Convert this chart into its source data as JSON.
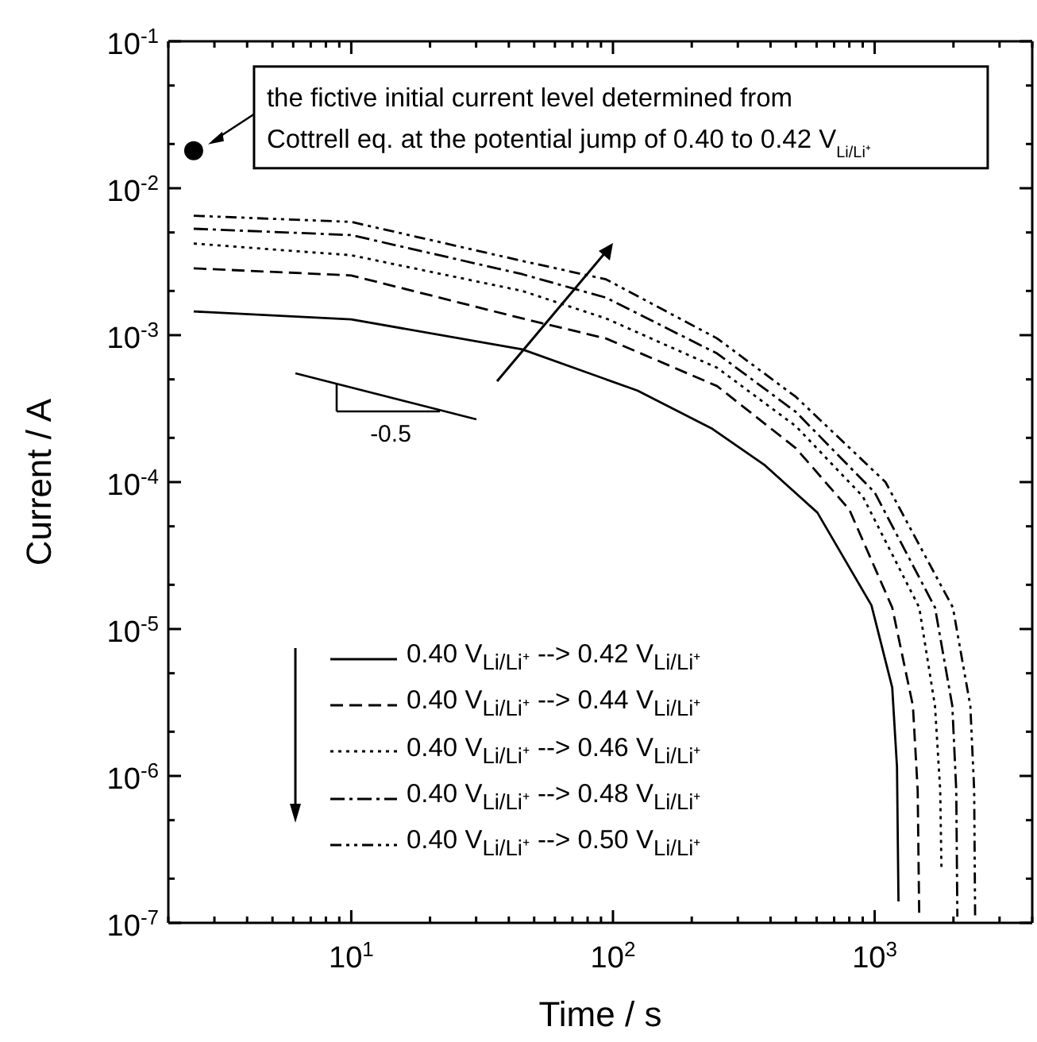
{
  "chart_data": {
    "type": "line",
    "xlabel": "Time / s",
    "ylabel": "Current / A",
    "log": "xy",
    "grid": false,
    "legend": "bottom left",
    "marker": "none",
    "xlim": [
      2,
      4000
    ],
    "xticks": [
      {
        "value": 2,
        "label": null
      },
      {
        "value": 3,
        "label": null
      },
      {
        "value": 4,
        "label": null
      },
      {
        "value": 5,
        "label": null
      },
      {
        "value": 6,
        "label": null
      },
      {
        "value": 7,
        "label": null
      },
      {
        "value": 8,
        "label": null
      },
      {
        "value": 9,
        "label": null
      },
      {
        "value": 10,
        "label": "10$^{1}$"
      },
      {
        "value": 20,
        "label": null
      },
      {
        "value": 30,
        "label": null
      },
      {
        "value": 40,
        "label": null
      },
      {
        "value": 50,
        "label": null
      },
      {
        "value": 60,
        "label": null
      },
      {
        "value": 70,
        "label": null
      },
      {
        "value": 80,
        "label": null
      },
      {
        "value": 90,
        "label": null
      },
      {
        "value": 100,
        "label": "10$^{2}$"
      },
      {
        "value": 200,
        "label": null
      },
      {
        "value": 300,
        "label": null
      },
      {
        "value": 400,
        "label": null
      },
      {
        "value": 500,
        "label": null
      },
      {
        "value": 600,
        "label": null
      },
      {
        "value": 700,
        "label": null
      },
      {
        "value": 800,
        "label": null
      },
      {
        "value": 900,
        "label": null
      },
      {
        "value": 1000,
        "label": "10$^{3}$"
      },
      {
        "value": 2000,
        "label": null
      },
      {
        "value": 3000,
        "label": null
      },
      {
        "value": 4000,
        "label": null
      }
    ],
    "ylim": [
      1e-07,
      0.1
    ],
    "yticks": [
      {
        "value": 1e-07,
        "label": "10$^{-7}$"
      },
      {
        "value": 2e-07,
        "label": null
      },
      {
        "value": 5e-07,
        "label": null
      },
      {
        "value": 1e-06,
        "label": "10$^{-6}$"
      },
      {
        "value": 2e-06,
        "label": null
      },
      {
        "value": 5e-06,
        "label": null
      },
      {
        "value": 1e-05,
        "label": "10$^{-5}$"
      },
      {
        "value": 2e-05,
        "label": null
      },
      {
        "value": 5e-05,
        "label": null
      },
      {
        "value": 0.0001,
        "label": "10$^{-4}$"
      },
      {
        "value": 0.0002,
        "label": null
      },
      {
        "value": 0.0005,
        "label": null
      },
      {
        "value": 0.001,
        "label": "10$^{-3}$"
      },
      {
        "value": 0.002,
        "label": null
      },
      {
        "value": 0.005,
        "label": null
      },
      {
        "value": 0.01,
        "label": "10$^{-2}$"
      },
      {
        "value": 0.02,
        "label": null
      },
      {
        "value": 0.05,
        "label": null
      },
      {
        "value": 0.1,
        "label": "10$^{-1}$"
      }
    ],
    "series": [
      {
        "name": "0.40 V$_{Li/Li⁺}$ --> 0.42 V$_{Li/Li⁺}$",
        "color": "#000000",
        "line_style": "solid",
        "x": [
          2.5,
          10,
          45,
          124,
          240,
          381,
          604,
          972,
          1167,
          1217,
          1233
        ],
        "values": [
          0.00145,
          0.00128,
          0.0008,
          0.00042,
          0.00023,
          0.00013,
          6.2e-05,
          1.45e-05,
          4e-06,
          1.15e-06,
          1.4e-07
        ]
      },
      {
        "name": "0.40 V$_{Li/Li⁺}$ --> 0.44 V$_{Li/Li⁺}$",
        "color": "#000000",
        "line_style": "dashed",
        "x": [
          2.5,
          10,
          45,
          94,
          250,
          500,
          800,
          1167,
          1400,
          1460,
          1480
        ],
        "values": [
          0.00285,
          0.00255,
          0.0013,
          0.00095,
          0.00045,
          0.00017,
          6.5e-05,
          1.4e-05,
          3e-06,
          8e-07,
          1.1e-07
        ]
      },
      {
        "name": "0.40 V$_{Li/Li⁺}$ --> 0.46 V$_{Li/Li⁺}$",
        "color": "#000000",
        "line_style": "dotted",
        "x": [
          2.5,
          10,
          45,
          94,
          250,
          500,
          900,
          1480,
          1700,
          1780,
          1800
        ],
        "values": [
          0.0042,
          0.0035,
          0.002,
          0.0013,
          0.0006,
          0.00024,
          8e-05,
          1.4e-05,
          3e-06,
          8e-07,
          2.3e-07
        ]
      },
      {
        "name": "0.40 V$_{Li/Li⁺}$ --> 0.48 V$_{Li/Li⁺}$",
        "color": "#000000",
        "line_style": "dashdot",
        "x": [
          2.5,
          10,
          45,
          94,
          250,
          500,
          1000,
          1700,
          1980,
          2050,
          2070
        ],
        "values": [
          0.0053,
          0.0048,
          0.0026,
          0.0018,
          0.00075,
          0.0003,
          8.5e-05,
          1.4e-05,
          3e-06,
          8e-07,
          1.1e-07
        ]
      },
      {
        "name": "0.40 V$_{Li/Li⁺}$ --> 0.50 V$_{Li/Li⁺}$",
        "color": "#000000",
        "line_style": "dashdotdot",
        "x": [
          2.5,
          10,
          45,
          94,
          250,
          500,
          1100,
          1990,
          2320,
          2400,
          2420
        ],
        "values": [
          0.0065,
          0.0059,
          0.0032,
          0.0024,
          0.00095,
          0.00038,
          0.0001,
          1.4e-05,
          3e-06,
          8e-07,
          1.1e-07
        ]
      },
      {
        "type": "scatter",
        "marker": "circle",
        "color": "#000000",
        "x": [
          2.5
        ],
        "values": [
          0.018
        ]
      }
    ],
    "annotations": [
      {
        "text": "the fictive initial current level determined from Cottrell eq. at the potential jump of 0.40 to 0.42 V$_{Li/Li⁺}$",
        "x": 2.5,
        "y": 0.018
      },
      "-0.5"
    ]
  }
}
